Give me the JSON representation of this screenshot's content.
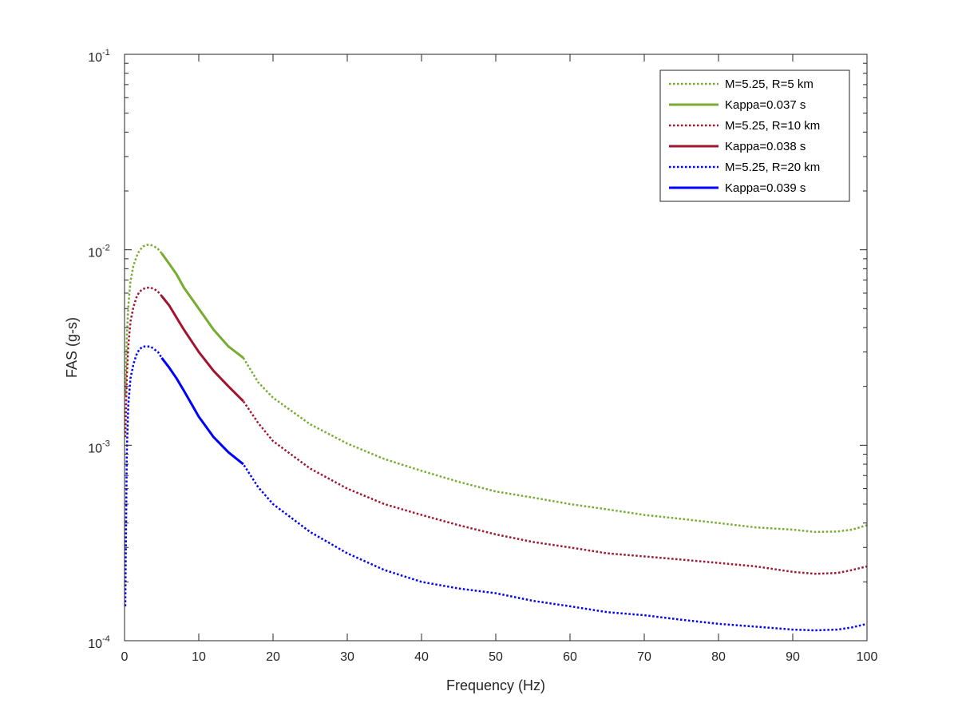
{
  "chart_data": {
    "type": "line",
    "title": "",
    "xlabel": "Frequency (Hz)",
    "ylabel": "FAS (g-s)",
    "xlim": [
      0,
      100
    ],
    "ylim": [
      0.0001,
      0.1
    ],
    "yscale": "log",
    "grid": false,
    "legend_position": "top-right",
    "x_ticks": [
      {
        "value": 0,
        "label": "0"
      },
      {
        "value": 10,
        "label": "10"
      },
      {
        "value": 20,
        "label": "20"
      },
      {
        "value": 30,
        "label": "30"
      },
      {
        "value": 40,
        "label": "40"
      },
      {
        "value": 50,
        "label": "50"
      },
      {
        "value": 60,
        "label": "60"
      },
      {
        "value": 70,
        "label": "70"
      },
      {
        "value": 80,
        "label": "80"
      },
      {
        "value": 90,
        "label": "90"
      },
      {
        "value": 100,
        "label": "100"
      }
    ],
    "y_ticks": [
      {
        "value": 0.0001,
        "base": "10",
        "exp": "-4"
      },
      {
        "value": 0.001,
        "base": "10",
        "exp": "-3"
      },
      {
        "value": 0.01,
        "base": "10",
        "exp": "-2"
      },
      {
        "value": 0.1,
        "base": "10",
        "exp": "-1"
      }
    ],
    "series": [
      {
        "name": "M=5.25, R=5 km",
        "color": "#77AC30",
        "style": "dotted",
        "x": [
          0.1,
          0.3,
          0.5,
          0.8,
          1.2,
          1.6,
          2,
          2.5,
          3,
          3.5,
          4,
          4.5,
          5,
          6,
          7,
          8,
          10,
          12,
          14,
          16,
          18,
          20,
          25,
          30,
          35,
          40,
          45,
          50,
          55,
          60,
          65,
          70,
          75,
          80,
          85,
          90,
          93,
          96,
          98,
          100
        ],
        "y": [
          0.0018,
          0.0035,
          0.0051,
          0.0069,
          0.0083,
          0.0092,
          0.0099,
          0.0104,
          0.0106,
          0.0106,
          0.0104,
          0.0101,
          0.0096,
          0.0085,
          0.0075,
          0.0064,
          0.005,
          0.0039,
          0.0032,
          0.0028,
          0.0021,
          0.00175,
          0.00128,
          0.00102,
          0.00085,
          0.00074,
          0.00065,
          0.00058,
          0.00054,
          0.0005,
          0.00047,
          0.00044,
          0.00042,
          0.0004,
          0.00038,
          0.00037,
          0.00036,
          0.000362,
          0.00037,
          0.00039
        ]
      },
      {
        "name": "Kappa=0.037 s",
        "color": "#77AC30",
        "style": "solid",
        "x": [
          5,
          6,
          7,
          8,
          10,
          12,
          14,
          16
        ],
        "y": [
          0.0096,
          0.0085,
          0.0075,
          0.0064,
          0.005,
          0.0039,
          0.0032,
          0.0028
        ]
      },
      {
        "name": "M=5.25, R=10 km",
        "color": "#A2142F",
        "style": "dotted",
        "x": [
          0.1,
          0.3,
          0.5,
          0.8,
          1.2,
          1.6,
          2,
          2.5,
          3,
          3.5,
          4,
          4.5,
          5,
          6,
          7,
          8,
          10,
          12,
          14,
          16,
          18,
          20,
          25,
          30,
          35,
          40,
          45,
          50,
          55,
          60,
          65,
          70,
          75,
          80,
          85,
          90,
          93,
          96,
          98,
          100
        ],
        "y": [
          0.0011,
          0.0022,
          0.0032,
          0.0043,
          0.0051,
          0.0057,
          0.0061,
          0.0063,
          0.0064,
          0.0064,
          0.0063,
          0.0061,
          0.0058,
          0.0052,
          0.0045,
          0.0039,
          0.003,
          0.0024,
          0.002,
          0.00168,
          0.0013,
          0.00105,
          0.00076,
          0.0006,
          0.0005,
          0.00044,
          0.00039,
          0.00035,
          0.00032,
          0.0003,
          0.00028,
          0.00027,
          0.00026,
          0.00025,
          0.00024,
          0.000225,
          0.00022,
          0.000222,
          0.00023,
          0.00024
        ]
      },
      {
        "name": "Kappa=0.038 s",
        "color": "#A2142F",
        "style": "solid",
        "x": [
          5,
          6,
          7,
          8,
          10,
          12,
          14,
          16
        ],
        "y": [
          0.0058,
          0.0052,
          0.0045,
          0.0039,
          0.003,
          0.0024,
          0.002,
          0.00168
        ]
      },
      {
        "name": "M=5.25, R=20 km",
        "color": "#0000FF",
        "style": "dotted",
        "x": [
          0.1,
          0.3,
          0.5,
          0.8,
          1.2,
          1.6,
          2,
          2.5,
          3,
          3.5,
          4,
          4.5,
          5,
          6,
          7,
          8,
          10,
          12,
          14,
          16,
          18,
          20,
          25,
          30,
          35,
          40,
          45,
          50,
          55,
          60,
          65,
          70,
          75,
          80,
          85,
          90,
          93,
          96,
          98,
          100
        ],
        "y": [
          0.00015,
          0.0009,
          0.0016,
          0.0022,
          0.0026,
          0.0029,
          0.0031,
          0.0032,
          0.0032,
          0.0032,
          0.0031,
          0.003,
          0.0028,
          0.0025,
          0.0022,
          0.0019,
          0.0014,
          0.0011,
          0.00092,
          0.0008,
          0.00061,
          0.0005,
          0.00036,
          0.00028,
          0.00023,
          0.0002,
          0.000185,
          0.000175,
          0.00016,
          0.00015,
          0.00014,
          0.000135,
          0.000128,
          0.000122,
          0.000118,
          0.000114,
          0.000113,
          0.000114,
          0.000117,
          0.000122
        ]
      },
      {
        "name": "Kappa=0.039 s",
        "color": "#0000FF",
        "style": "solid",
        "x": [
          5,
          6,
          7,
          8,
          10,
          12,
          14,
          16
        ],
        "y": [
          0.0028,
          0.0025,
          0.0022,
          0.0019,
          0.0014,
          0.0011,
          0.00092,
          0.0008
        ]
      }
    ]
  }
}
